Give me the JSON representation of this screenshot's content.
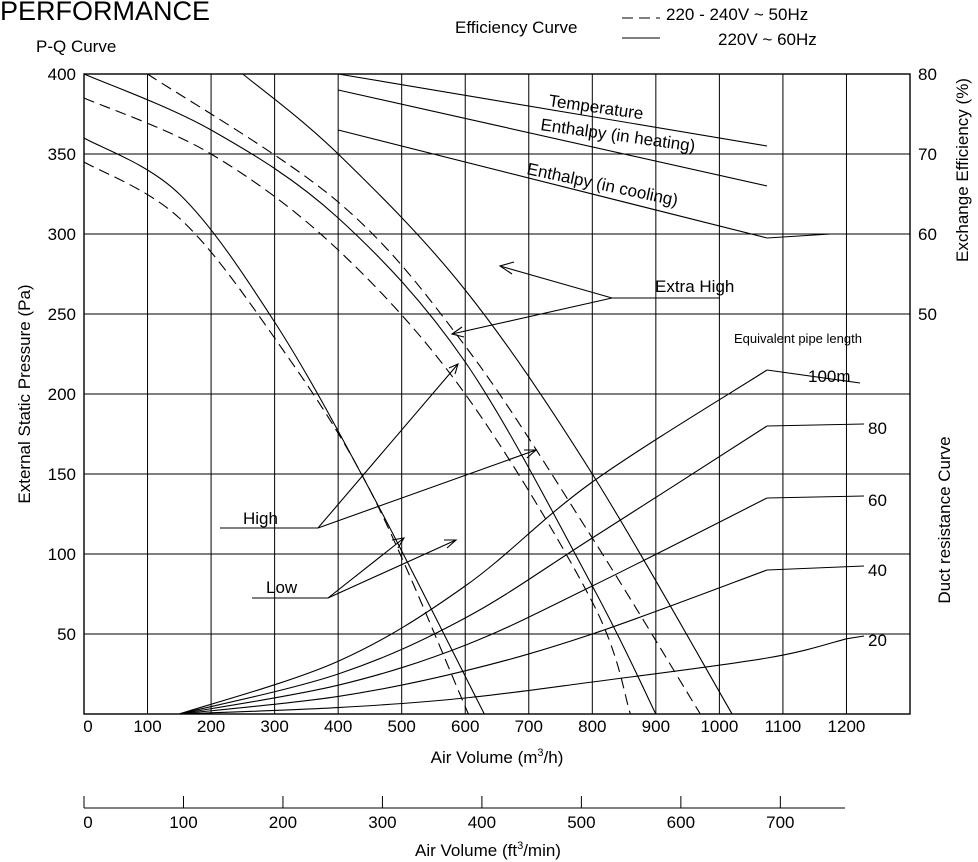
{
  "header": {
    "title": "PERFORMANCE",
    "subtitle": "P-Q Curve",
    "legend_title": "Efficiency Curve",
    "legend_dashed": "220 - 240V ~ 50Hz",
    "legend_solid": "220V ~ 60Hz"
  },
  "chart_data": {
    "type": "line",
    "xlabel_prefix": "Air Volume (m",
    "xlabel_sup": "3",
    "xlabel_suffix": "/h)",
    "x2label_prefix": "Air Volume (ft",
    "x2label_sup": "3",
    "x2label_suffix": "/min)",
    "ylabel": "External Static Pressure (Pa)",
    "y2label": "Exchange Efficiency (%)",
    "duct_axis_label": "Duct resistance Curve",
    "xlim": [
      0,
      1300
    ],
    "ylim": [
      0,
      400
    ],
    "y2lim": [
      0,
      80
    ],
    "x2lim": [
      0,
      765
    ],
    "grid": true,
    "x_ticks": [
      "0",
      "100",
      "200",
      "300",
      "400",
      "500",
      "600",
      "700",
      "800",
      "900",
      "1000",
      "1100",
      "1200"
    ],
    "y_ticks": [
      "50",
      "100",
      "150",
      "200",
      "250",
      "300",
      "350",
      "400"
    ],
    "y2_ticks": [
      "50",
      "60",
      "70",
      "80"
    ],
    "x2_ticks": [
      "0",
      "100",
      "200",
      "300",
      "400",
      "500",
      "600",
      "700"
    ],
    "pq_curves": [
      {
        "speed": "Low",
        "supply": "60Hz",
        "style": "solid",
        "points": [
          [
            0,
            360
          ],
          [
            150,
            325
          ],
          [
            300,
            245
          ],
          [
            450,
            140
          ],
          [
            630,
            0
          ]
        ]
      },
      {
        "speed": "Low",
        "supply": "50Hz",
        "style": "dashed",
        "points": [
          [
            0,
            345
          ],
          [
            150,
            310
          ],
          [
            300,
            235
          ],
          [
            450,
            140
          ],
          [
            605,
            0
          ]
        ]
      },
      {
        "speed": "High",
        "supply": "60Hz",
        "style": "solid",
        "points": [
          [
            0,
            400
          ],
          [
            200,
            365
          ],
          [
            400,
            310
          ],
          [
            600,
            220
          ],
          [
            800,
            80
          ],
          [
            900,
            0
          ]
        ]
      },
      {
        "speed": "High",
        "supply": "50Hz",
        "style": "dashed",
        "points": [
          [
            0,
            385
          ],
          [
            200,
            350
          ],
          [
            400,
            290
          ],
          [
            600,
            200
          ],
          [
            800,
            70
          ],
          [
            860,
            0
          ]
        ]
      },
      {
        "speed": "Extra High",
        "supply": "60Hz",
        "style": "solid",
        "points": [
          [
            250,
            400
          ],
          [
            400,
            350
          ],
          [
            600,
            265
          ],
          [
            800,
            150
          ],
          [
            1020,
            0
          ]
        ]
      },
      {
        "speed": "Extra High",
        "supply": "50Hz",
        "style": "dashed",
        "points": [
          [
            100,
            400
          ],
          [
            400,
            320
          ],
          [
            600,
            230
          ],
          [
            800,
            110
          ],
          [
            970,
            0
          ]
        ]
      }
    ],
    "efficiency_curves": [
      {
        "name": "Temperature",
        "points": [
          [
            400,
            80
          ],
          [
            1075,
            71
          ]
        ]
      },
      {
        "name": "Enthalpy (in heating)",
        "points": [
          [
            400,
            78
          ],
          [
            1075,
            66
          ]
        ]
      },
      {
        "name": "Enthalpy (in cooling)",
        "points": [
          [
            400,
            73
          ],
          [
            1075,
            59.5
          ],
          [
            1175,
            60
          ]
        ]
      }
    ],
    "duct_curve_title": "Equivalent pipe length",
    "duct_curves": [
      {
        "name": "100m",
        "points": [
          [
            150,
            0
          ],
          [
            400,
            33
          ],
          [
            600,
            80
          ],
          [
            800,
            145
          ],
          [
            1075,
            215
          ]
        ]
      },
      {
        "name": "80",
        "points": [
          [
            150,
            0
          ],
          [
            400,
            25
          ],
          [
            600,
            60
          ],
          [
            800,
            110
          ],
          [
            1075,
            180
          ]
        ]
      },
      {
        "name": "60",
        "points": [
          [
            150,
            0
          ],
          [
            400,
            18
          ],
          [
            600,
            43
          ],
          [
            800,
            80
          ],
          [
            1075,
            135
          ]
        ]
      },
      {
        "name": "40",
        "points": [
          [
            150,
            0
          ],
          [
            400,
            11
          ],
          [
            600,
            27
          ],
          [
            800,
            50
          ],
          [
            1075,
            90
          ]
        ]
      },
      {
        "name": "20",
        "points": [
          [
            150,
            0
          ],
          [
            400,
            4
          ],
          [
            600,
            10
          ],
          [
            800,
            20
          ],
          [
            1075,
            35
          ],
          [
            1200,
            47
          ]
        ]
      }
    ],
    "annotations": [
      "Extra High",
      "High",
      "Low"
    ]
  }
}
